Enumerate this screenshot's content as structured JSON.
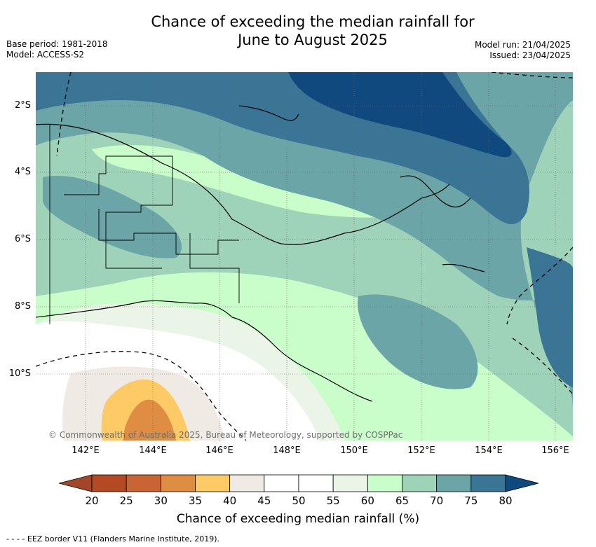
{
  "title_line1": "Chance of exceeding the median rainfall for",
  "title_line2": "June to August 2025",
  "meta": {
    "base_period": "Base period: 1981-2018",
    "model": "Model: ACCESS-S2",
    "model_run": "Model run: 21/04/2025",
    "issued": "Issued: 23/04/2025"
  },
  "map": {
    "lat_labels": [
      "2°S",
      "4°S",
      "6°S",
      "8°S",
      "10°S"
    ],
    "lon_labels": [
      "142°E",
      "144°E",
      "146°E",
      "148°E",
      "150°E",
      "152°E",
      "154°E",
      "156°E"
    ],
    "credit": "© Commonwealth of Australia 2025, Bureau of Meteorology, supported by COSPPac"
  },
  "colorbar": {
    "label": "Chance of exceeding median rainfall (%)",
    "ticks": [
      "20",
      "25",
      "30",
      "35",
      "40",
      "45",
      "50",
      "55",
      "60",
      "65",
      "70",
      "75",
      "80"
    ],
    "colors": [
      "#a4452a",
      "#b34a24",
      "#c96434",
      "#de8d42",
      "#fdca66",
      "#efeae3",
      "#ffffff",
      "#ffffff",
      "#eaf5e7",
      "#c9fdc9",
      "#9fd3b9",
      "#6ba5a8",
      "#3b7596",
      "#10497e"
    ]
  },
  "footer": "- - - - EEZ border V11 (Flanders Marine Institute, 2019)."
}
